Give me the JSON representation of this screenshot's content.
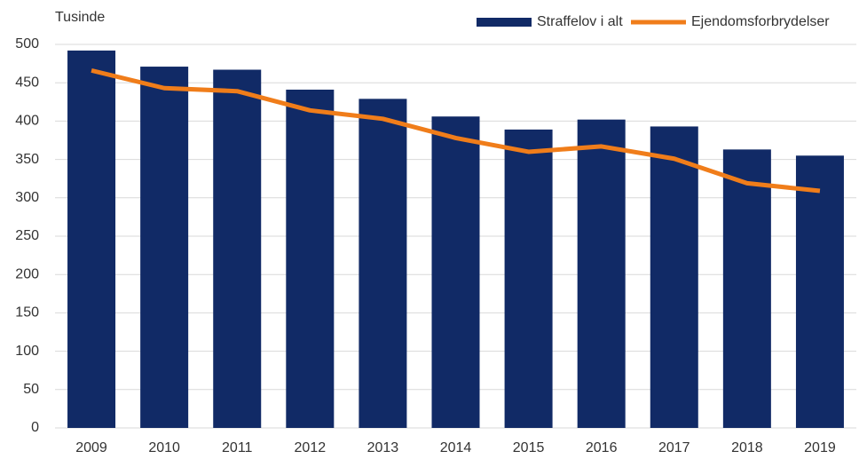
{
  "chart_data": {
    "type": "bar",
    "y_label": "Tusinde",
    "categories": [
      "2009",
      "2010",
      "2011",
      "2012",
      "2013",
      "2014",
      "2015",
      "2016",
      "2017",
      "2018",
      "2019"
    ],
    "series": [
      {
        "name": "Straffelov i alt",
        "type": "bar",
        "color": "#112a66",
        "values": [
          492,
          471,
          467,
          441,
          429,
          406,
          389,
          402,
          393,
          363,
          355
        ]
      },
      {
        "name": "Ejendomsforbrydelser",
        "type": "line",
        "color": "#f07d1a",
        "values": [
          466,
          443,
          439,
          414,
          403,
          378,
          360,
          367,
          351,
          319,
          309
        ]
      }
    ],
    "ylim": [
      0,
      500
    ],
    "yticks": [
      0,
      50,
      100,
      150,
      200,
      250,
      300,
      350,
      400,
      450,
      500
    ],
    "grid": true
  }
}
